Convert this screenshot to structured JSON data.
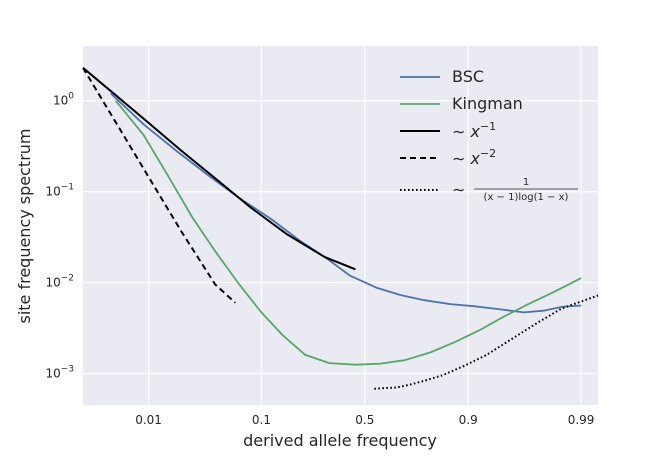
{
  "chart_data": {
    "type": "line",
    "xlabel": "derived allele frequency",
    "ylabel": "site frequency spectrum",
    "x_scale": "logit",
    "y_scale": "log",
    "xlim": [
      0.0025,
      0.993
    ],
    "ylim": [
      0.00045,
      4
    ],
    "grid": true,
    "legend_position": "top-right",
    "x_ticks": [
      {
        "value": 0.01,
        "label": "0.01"
      },
      {
        "value": 0.1,
        "label": "0.1"
      },
      {
        "value": 0.5,
        "label": "0.5"
      },
      {
        "value": 0.9,
        "label": "0.9"
      },
      {
        "value": 0.99,
        "label": "0.99"
      }
    ],
    "y_ticks": [
      {
        "value": 1,
        "base": "10",
        "exp": "0"
      },
      {
        "value": 0.1,
        "base": "10",
        "exp": "−1"
      },
      {
        "value": 0.01,
        "base": "10",
        "exp": "−2"
      },
      {
        "value": 0.001,
        "base": "10",
        "exp": "−3"
      }
    ],
    "series": [
      {
        "name": "BSC",
        "color": "#4c72b0",
        "dash": "solid",
        "x": [
          0.0045,
          0.009,
          0.018,
          0.035,
          0.065,
          0.12,
          0.2,
          0.3,
          0.42,
          0.56,
          0.68,
          0.78,
          0.86,
          0.91,
          0.945,
          0.967,
          0.978,
          0.985,
          0.99
        ],
        "y": [
          1.2,
          0.55,
          0.28,
          0.15,
          0.085,
          0.05,
          0.029,
          0.019,
          0.012,
          0.0088,
          0.0073,
          0.0064,
          0.0058,
          0.0055,
          0.0051,
          0.0047,
          0.0049,
          0.0054,
          0.0056
        ]
      },
      {
        "name": "Kingman",
        "color": "#55a868",
        "dash": "solid",
        "x": [
          0.005,
          0.009,
          0.015,
          0.025,
          0.04,
          0.065,
          0.1,
          0.15,
          0.22,
          0.32,
          0.45,
          0.58,
          0.7,
          0.8,
          0.87,
          0.92,
          0.95,
          0.97,
          0.982,
          0.99
        ],
        "y": [
          1.0,
          0.42,
          0.15,
          0.052,
          0.022,
          0.0095,
          0.0047,
          0.0026,
          0.0016,
          0.0013,
          0.00125,
          0.00128,
          0.0014,
          0.0017,
          0.0022,
          0.003,
          0.0042,
          0.0058,
          0.0078,
          0.0112
        ]
      },
      {
        "name": "∼ x^−1",
        "color": "#000000",
        "dash": "solid",
        "x": [
          0.0025,
          0.005,
          0.01,
          0.02,
          0.04,
          0.08,
          0.16,
          0.3,
          0.45
        ],
        "y": [
          2.3,
          1.15,
          0.57,
          0.28,
          0.14,
          0.068,
          0.034,
          0.019,
          0.014
        ]
      },
      {
        "name": "∼ x^−2",
        "color": "#000000",
        "dash": "dashed",
        "x": [
          0.0025,
          0.005,
          0.01,
          0.02,
          0.04,
          0.06
        ],
        "y": [
          2.3,
          0.58,
          0.145,
          0.036,
          0.0095,
          0.006
        ]
      },
      {
        "name": "∼ 1/((x−1)log(1−x))",
        "color": "#000000",
        "dash": "dotted",
        "x": [
          0.55,
          0.6,
          0.66,
          0.72,
          0.78,
          0.84,
          0.89,
          0.93,
          0.96,
          0.975,
          0.985,
          0.993
        ],
        "y": [
          0.00068,
          0.00069,
          0.0007,
          0.00075,
          0.00083,
          0.00096,
          0.0012,
          0.0016,
          0.0025,
          0.0036,
          0.0052,
          0.0072
        ]
      }
    ],
    "legend": [
      {
        "label": "BSC"
      },
      {
        "label": "Kingman"
      },
      {
        "prefix": "∼ ",
        "var": "x",
        "sup": "−1"
      },
      {
        "prefix": "∼ ",
        "var": "x",
        "sup": "−2"
      },
      {
        "prefix": "∼ ",
        "numerator": "1",
        "denominator": "(x − 1)log(1 − x)"
      }
    ]
  }
}
